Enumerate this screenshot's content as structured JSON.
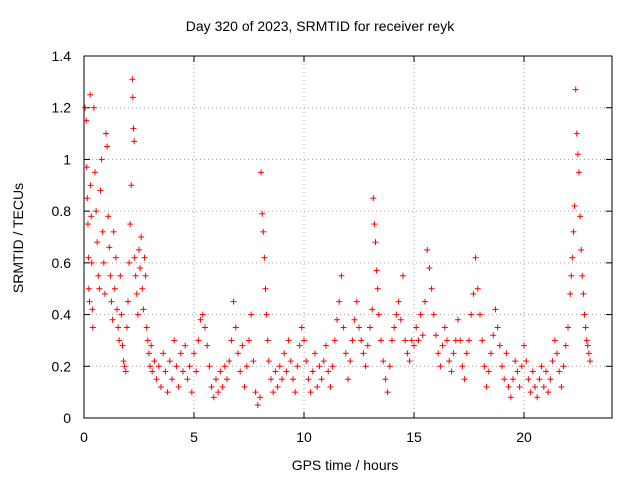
{
  "chart_data": {
    "type": "scatter",
    "title": "Day 320 of 2023, SRMTID for receiver reyk",
    "xlabel": "GPS time / hours",
    "ylabel": "SRMTID / TECUs",
    "xlim": [
      0,
      24
    ],
    "ylim": [
      0,
      1.4
    ],
    "xticks": [
      0,
      5,
      10,
      15,
      20
    ],
    "xtick_labels": [
      "0",
      "5",
      "10",
      "15",
      "20"
    ],
    "yticks": [
      0,
      0.2,
      0.4,
      0.6,
      0.8,
      1,
      1.2,
      1.4
    ],
    "ytick_labels": [
      "0",
      "0.2",
      "0.4",
      "0.6",
      "0.8",
      "1",
      "1.2",
      "1.4"
    ],
    "grid": true,
    "marker": "plus",
    "color": "#ff0000",
    "series": [
      {
        "name": "SRMTID",
        "points": [
          [
            0.05,
            1.2
          ],
          [
            0.1,
            1.15
          ],
          [
            0.12,
            0.97
          ],
          [
            0.15,
            0.85
          ],
          [
            0.18,
            0.75
          ],
          [
            0.2,
            0.62
          ],
          [
            0.22,
            0.5
          ],
          [
            0.25,
            0.45
          ],
          [
            0.28,
            1.25
          ],
          [
            0.3,
            0.9
          ],
          [
            0.33,
            0.78
          ],
          [
            0.35,
            0.6
          ],
          [
            0.38,
            0.42
          ],
          [
            0.4,
            0.35
          ],
          [
            0.45,
            1.2
          ],
          [
            0.5,
            0.95
          ],
          [
            0.55,
            0.8
          ],
          [
            0.6,
            0.68
          ],
          [
            0.65,
            0.55
          ],
          [
            0.7,
            0.5
          ],
          [
            0.75,
            0.88
          ],
          [
            0.8,
            1.0
          ],
          [
            0.85,
            0.72
          ],
          [
            0.9,
            0.6
          ],
          [
            0.95,
            0.48
          ],
          [
            1.0,
            1.1
          ],
          [
            1.05,
            1.05
          ],
          [
            1.1,
            0.78
          ],
          [
            1.15,
            0.66
          ],
          [
            1.2,
            0.55
          ],
          [
            1.25,
            0.45
          ],
          [
            1.3,
            0.38
          ],
          [
            1.35,
            0.72
          ],
          [
            1.4,
            0.5
          ],
          [
            1.45,
            0.62
          ],
          [
            1.5,
            0.42
          ],
          [
            1.55,
            0.35
          ],
          [
            1.6,
            0.3
          ],
          [
            1.65,
            0.55
          ],
          [
            1.7,
            0.4
          ],
          [
            1.75,
            0.28
          ],
          [
            1.8,
            0.22
          ],
          [
            1.85,
            0.2
          ],
          [
            1.9,
            0.18
          ],
          [
            1.95,
            0.35
          ],
          [
            2.0,
            0.45
          ],
          [
            2.05,
            0.6
          ],
          [
            2.1,
            0.75
          ],
          [
            2.15,
            0.9
          ],
          [
            2.2,
            1.31
          ],
          [
            2.22,
            1.24
          ],
          [
            2.25,
            1.12
          ],
          [
            2.28,
            1.07
          ],
          [
            2.3,
            0.62
          ],
          [
            2.35,
            0.55
          ],
          [
            2.4,
            0.48
          ],
          [
            2.45,
            0.4
          ],
          [
            2.5,
            0.65
          ],
          [
            2.55,
            0.58
          ],
          [
            2.6,
            0.7
          ],
          [
            2.65,
            0.5
          ],
          [
            2.7,
            0.42
          ],
          [
            2.75,
            0.62
          ],
          [
            2.8,
            0.55
          ],
          [
            2.85,
            0.35
          ],
          [
            2.9,
            0.3
          ],
          [
            2.95,
            0.25
          ],
          [
            3.0,
            0.2
          ],
          [
            3.05,
            0.28
          ],
          [
            3.1,
            0.18
          ],
          [
            3.2,
            0.22
          ],
          [
            3.3,
            0.15
          ],
          [
            3.4,
            0.2
          ],
          [
            3.5,
            0.12
          ],
          [
            3.6,
            0.25
          ],
          [
            3.7,
            0.18
          ],
          [
            3.8,
            0.1
          ],
          [
            3.9,
            0.22
          ],
          [
            4.0,
            0.15
          ],
          [
            4.1,
            0.3
          ],
          [
            4.2,
            0.2
          ],
          [
            4.3,
            0.12
          ],
          [
            4.4,
            0.25
          ],
          [
            4.5,
            0.18
          ],
          [
            4.6,
            0.28
          ],
          [
            4.7,
            0.15
          ],
          [
            4.8,
            0.2
          ],
          [
            4.9,
            0.1
          ],
          [
            5.0,
            0.25
          ],
          [
            5.1,
            0.18
          ],
          [
            5.2,
            0.3
          ],
          [
            5.3,
            0.38
          ],
          [
            5.4,
            0.4
          ],
          [
            5.5,
            0.35
          ],
          [
            5.6,
            0.28
          ],
          [
            5.7,
            0.2
          ],
          [
            5.8,
            0.12
          ],
          [
            5.9,
            0.08
          ],
          [
            6.0,
            0.15
          ],
          [
            6.1,
            0.1
          ],
          [
            6.2,
            0.18
          ],
          [
            6.3,
            0.12
          ],
          [
            6.4,
            0.2
          ],
          [
            6.5,
            0.15
          ],
          [
            6.6,
            0.22
          ],
          [
            6.7,
            0.3
          ],
          [
            6.8,
            0.45
          ],
          [
            6.9,
            0.35
          ],
          [
            7.0,
            0.25
          ],
          [
            7.1,
            0.18
          ],
          [
            7.2,
            0.28
          ],
          [
            7.3,
            0.12
          ],
          [
            7.4,
            0.2
          ],
          [
            7.5,
            0.3
          ],
          [
            7.6,
            0.4
          ],
          [
            7.7,
            0.22
          ],
          [
            7.8,
            0.1
          ],
          [
            7.9,
            0.05
          ],
          [
            8.0,
            0.08
          ],
          [
            8.05,
            0.95
          ],
          [
            8.1,
            0.79
          ],
          [
            8.15,
            0.72
          ],
          [
            8.2,
            0.62
          ],
          [
            8.25,
            0.5
          ],
          [
            8.3,
            0.4
          ],
          [
            8.35,
            0.3
          ],
          [
            8.4,
            0.22
          ],
          [
            8.5,
            0.15
          ],
          [
            8.6,
            0.1
          ],
          [
            8.7,
            0.18
          ],
          [
            8.8,
            0.12
          ],
          [
            8.9,
            0.2
          ],
          [
            9.0,
            0.15
          ],
          [
            9.1,
            0.25
          ],
          [
            9.2,
            0.18
          ],
          [
            9.3,
            0.3
          ],
          [
            9.4,
            0.22
          ],
          [
            9.5,
            0.15
          ],
          [
            9.6,
            0.1
          ],
          [
            9.7,
            0.2
          ],
          [
            9.8,
            0.28
          ],
          [
            9.9,
            0.35
          ],
          [
            10.0,
            0.3
          ],
          [
            10.1,
            0.22
          ],
          [
            10.2,
            0.15
          ],
          [
            10.3,
            0.1
          ],
          [
            10.4,
            0.18
          ],
          [
            10.5,
            0.25
          ],
          [
            10.6,
            0.12
          ],
          [
            10.7,
            0.2
          ],
          [
            10.8,
            0.15
          ],
          [
            10.9,
            0.22
          ],
          [
            11.0,
            0.28
          ],
          [
            11.1,
            0.18
          ],
          [
            11.2,
            0.12
          ],
          [
            11.3,
            0.2
          ],
          [
            11.4,
            0.3
          ],
          [
            11.5,
            0.38
          ],
          [
            11.6,
            0.45
          ],
          [
            11.7,
            0.55
          ],
          [
            11.8,
            0.35
          ],
          [
            11.9,
            0.25
          ],
          [
            12.0,
            0.15
          ],
          [
            12.1,
            0.22
          ],
          [
            12.2,
            0.3
          ],
          [
            12.3,
            0.38
          ],
          [
            12.4,
            0.45
          ],
          [
            12.5,
            0.35
          ],
          [
            12.6,
            0.3
          ],
          [
            12.7,
            0.25
          ],
          [
            12.8,
            0.2
          ],
          [
            12.9,
            0.28
          ],
          [
            13.0,
            0.35
          ],
          [
            13.1,
            0.42
          ],
          [
            13.15,
            0.85
          ],
          [
            13.2,
            0.75
          ],
          [
            13.25,
            0.68
          ],
          [
            13.3,
            0.57
          ],
          [
            13.35,
            0.5
          ],
          [
            13.4,
            0.4
          ],
          [
            13.5,
            0.3
          ],
          [
            13.6,
            0.22
          ],
          [
            13.7,
            0.15
          ],
          [
            13.8,
            0.1
          ],
          [
            13.9,
            0.2
          ],
          [
            14.0,
            0.3
          ],
          [
            14.1,
            0.35
          ],
          [
            14.2,
            0.4
          ],
          [
            14.3,
            0.45
          ],
          [
            14.4,
            0.38
          ],
          [
            14.5,
            0.55
          ],
          [
            14.6,
            0.3
          ],
          [
            14.7,
            0.25
          ],
          [
            14.8,
            0.22
          ],
          [
            14.9,
            0.3
          ],
          [
            15.0,
            0.28
          ],
          [
            15.1,
            0.35
          ],
          [
            15.2,
            0.3
          ],
          [
            15.3,
            0.4
          ],
          [
            15.4,
            0.32
          ],
          [
            15.5,
            0.45
          ],
          [
            15.6,
            0.65
          ],
          [
            15.7,
            0.58
          ],
          [
            15.8,
            0.5
          ],
          [
            15.9,
            0.4
          ],
          [
            16.0,
            0.32
          ],
          [
            16.1,
            0.25
          ],
          [
            16.2,
            0.2
          ],
          [
            16.3,
            0.28
          ],
          [
            16.4,
            0.35
          ],
          [
            16.5,
            0.3
          ],
          [
            16.6,
            0.22
          ],
          [
            16.7,
            0.18
          ],
          [
            16.8,
            0.25
          ],
          [
            16.9,
            0.3
          ],
          [
            17.0,
            0.38
          ],
          [
            17.1,
            0.3
          ],
          [
            17.2,
            0.2
          ],
          [
            17.3,
            0.15
          ],
          [
            17.4,
            0.25
          ],
          [
            17.5,
            0.3
          ],
          [
            17.6,
            0.4
          ],
          [
            17.7,
            0.48
          ],
          [
            17.8,
            0.62
          ],
          [
            17.9,
            0.5
          ],
          [
            18.0,
            0.4
          ],
          [
            18.1,
            0.3
          ],
          [
            18.2,
            0.2
          ],
          [
            18.3,
            0.12
          ],
          [
            18.4,
            0.18
          ],
          [
            18.5,
            0.25
          ],
          [
            18.6,
            0.32
          ],
          [
            18.7,
            0.42
          ],
          [
            18.8,
            0.35
          ],
          [
            18.9,
            0.28
          ],
          [
            19.0,
            0.2
          ],
          [
            19.1,
            0.15
          ],
          [
            19.2,
            0.25
          ],
          [
            19.3,
            0.12
          ],
          [
            19.4,
            0.08
          ],
          [
            19.5,
            0.15
          ],
          [
            19.6,
            0.22
          ],
          [
            19.7,
            0.18
          ],
          [
            19.8,
            0.12
          ],
          [
            19.9,
            0.2
          ],
          [
            20.0,
            0.28
          ],
          [
            20.1,
            0.22
          ],
          [
            20.2,
            0.15
          ],
          [
            20.3,
            0.1
          ],
          [
            20.4,
            0.18
          ],
          [
            20.5,
            0.12
          ],
          [
            20.6,
            0.08
          ],
          [
            20.7,
            0.15
          ],
          [
            20.8,
            0.2
          ],
          [
            20.9,
            0.12
          ],
          [
            21.0,
            0.18
          ],
          [
            21.1,
            0.1
          ],
          [
            21.2,
            0.15
          ],
          [
            21.3,
            0.22
          ],
          [
            21.4,
            0.3
          ],
          [
            21.5,
            0.25
          ],
          [
            21.6,
            0.18
          ],
          [
            21.7,
            0.12
          ],
          [
            21.8,
            0.2
          ],
          [
            21.9,
            0.28
          ],
          [
            22.0,
            0.35
          ],
          [
            22.1,
            0.48
          ],
          [
            22.15,
            0.55
          ],
          [
            22.2,
            0.62
          ],
          [
            22.25,
            0.72
          ],
          [
            22.3,
            0.82
          ],
          [
            22.35,
            1.27
          ],
          [
            22.4,
            1.1
          ],
          [
            22.45,
            1.02
          ],
          [
            22.5,
            0.95
          ],
          [
            22.55,
            0.78
          ],
          [
            22.6,
            0.65
          ],
          [
            22.65,
            0.55
          ],
          [
            22.7,
            0.48
          ],
          [
            22.75,
            0.4
          ],
          [
            22.8,
            0.35
          ],
          [
            22.85,
            0.3
          ],
          [
            22.9,
            0.28
          ],
          [
            22.95,
            0.25
          ],
          [
            23.0,
            0.22
          ]
        ]
      }
    ]
  }
}
